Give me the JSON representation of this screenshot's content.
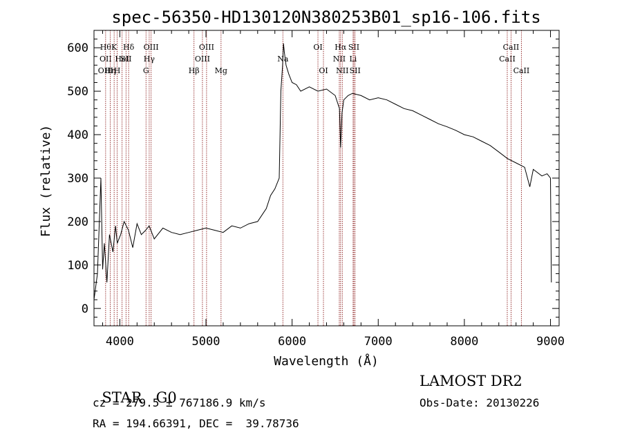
{
  "chart_data": {
    "type": "line",
    "title": "spec-56350-HD130120N380253B01_sp16-106.fits",
    "xlabel": "Wavelength (Å)",
    "ylabel": "Flux (relative)",
    "xlim": [
      3700,
      9100
    ],
    "ylim": [
      -40,
      640
    ],
    "xticks": [
      4000,
      5000,
      6000,
      7000,
      8000,
      9000
    ],
    "yticks": [
      0,
      100,
      200,
      300,
      400,
      500,
      600
    ],
    "grid": false,
    "line_color": "#000000",
    "marker_color": "#8b1a1a",
    "series": [
      {
        "x": [
          3700,
          3740,
          3780,
          3800,
          3820,
          3850,
          3880,
          3920,
          3950,
          3970,
          3990,
          4010,
          4050,
          4100,
          4150,
          4200,
          4250,
          4300,
          4340,
          4400,
          4500,
          4600,
          4700,
          4800,
          4900,
          5000,
          5100,
          5200,
          5300,
          5400,
          5500,
          5600,
          5700,
          5750,
          5800,
          5850,
          5870,
          5890,
          5900,
          5910,
          5930,
          5960,
          6000,
          6050,
          6100,
          6200,
          6300,
          6400,
          6500,
          6550,
          6563,
          6580,
          6600,
          6650,
          6700,
          6800,
          6900,
          7000,
          7100,
          7200,
          7300,
          7400,
          7500,
          7600,
          7700,
          7800,
          7900,
          8000,
          8100,
          8200,
          8300,
          8400,
          8500,
          8600,
          8700,
          8760,
          8800,
          8900,
          8960,
          9000,
          9010
        ],
        "y": [
          20,
          80,
          300,
          90,
          150,
          60,
          170,
          130,
          190,
          150,
          160,
          170,
          200,
          180,
          140,
          195,
          170,
          180,
          190,
          160,
          185,
          175,
          170,
          175,
          180,
          185,
          180,
          175,
          190,
          185,
          195,
          200,
          230,
          260,
          275,
          300,
          500,
          560,
          610,
          590,
          560,
          540,
          520,
          515,
          500,
          510,
          500,
          505,
          490,
          460,
          370,
          450,
          480,
          490,
          495,
          490,
          480,
          485,
          480,
          470,
          460,
          455,
          445,
          435,
          425,
          418,
          410,
          400,
          395,
          385,
          375,
          360,
          345,
          335,
          325,
          280,
          320,
          305,
          310,
          300,
          60
        ]
      }
    ],
    "line_markers": [
      {
        "wl": 3835,
        "labels": [
          "Hθ",
          "OII",
          "OIII"
        ],
        "rows": [
          0,
          1,
          2
        ]
      },
      {
        "wl": 3889,
        "labels": [
          "Hη"
        ],
        "rows": [
          2
        ]
      },
      {
        "wl": 3934,
        "labels": [
          "K"
        ],
        "rows": [
          0
        ]
      },
      {
        "wl": 3969,
        "labels": [
          "H"
        ],
        "rows": [
          2
        ]
      },
      {
        "wl": 4026,
        "labels": [
          "HeI"
        ],
        "rows": [
          1
        ]
      },
      {
        "wl": 4072,
        "labels": [
          "SII"
        ],
        "rows": [
          1
        ]
      },
      {
        "wl": 4102,
        "labels": [
          "Hδ"
        ],
        "rows": [
          0
        ]
      },
      {
        "wl": 4304,
        "labels": [
          "G"
        ],
        "rows": [
          2
        ]
      },
      {
        "wl": 4341,
        "labels": [
          "Hγ"
        ],
        "rows": [
          1
        ]
      },
      {
        "wl": 4363,
        "labels": [
          "OIII"
        ],
        "rows": [
          0
        ]
      },
      {
        "wl": 4861,
        "labels": [
          "Hβ"
        ],
        "rows": [
          2
        ]
      },
      {
        "wl": 4959,
        "labels": [
          "OIII"
        ],
        "rows": [
          1
        ]
      },
      {
        "wl": 5007,
        "labels": [
          "OIII"
        ],
        "rows": [
          0
        ]
      },
      {
        "wl": 5175,
        "labels": [
          "Mg"
        ],
        "rows": [
          2
        ]
      },
      {
        "wl": 5893,
        "labels": [
          "Na"
        ],
        "rows": [
          1
        ]
      },
      {
        "wl": 6300,
        "labels": [
          "OI"
        ],
        "rows": [
          0
        ]
      },
      {
        "wl": 6364,
        "labels": [
          "OI"
        ],
        "rows": [
          2
        ]
      },
      {
        "wl": 6548,
        "labels": [
          "NII"
        ],
        "rows": [
          1
        ]
      },
      {
        "wl": 6563,
        "labels": [
          "Hα"
        ],
        "rows": [
          0
        ]
      },
      {
        "wl": 6583,
        "labels": [
          "NII"
        ],
        "rows": [
          2
        ]
      },
      {
        "wl": 6708,
        "labels": [
          "Li"
        ],
        "rows": [
          1
        ]
      },
      {
        "wl": 6717,
        "labels": [
          "SII"
        ],
        "rows": [
          0
        ]
      },
      {
        "wl": 6731,
        "labels": [
          "SII"
        ],
        "rows": [
          2
        ]
      },
      {
        "wl": 8498,
        "labels": [
          "CaII"
        ],
        "rows": [
          1
        ]
      },
      {
        "wl": 8542,
        "labels": [
          "CaII"
        ],
        "rows": [
          0
        ]
      },
      {
        "wl": 8662,
        "labels": [
          "CaII"
        ],
        "rows": [
          2
        ]
      }
    ]
  },
  "info": {
    "class_label": "STAR",
    "subclass": "G0",
    "survey": "LAMOST DR2",
    "cz_line": "cz = 279.5 ± 767186.9 km/s",
    "obs_date_line": "Obs-Date: 20130226",
    "coords_line": "RA = 194.66391, DEC =  39.78736"
  }
}
